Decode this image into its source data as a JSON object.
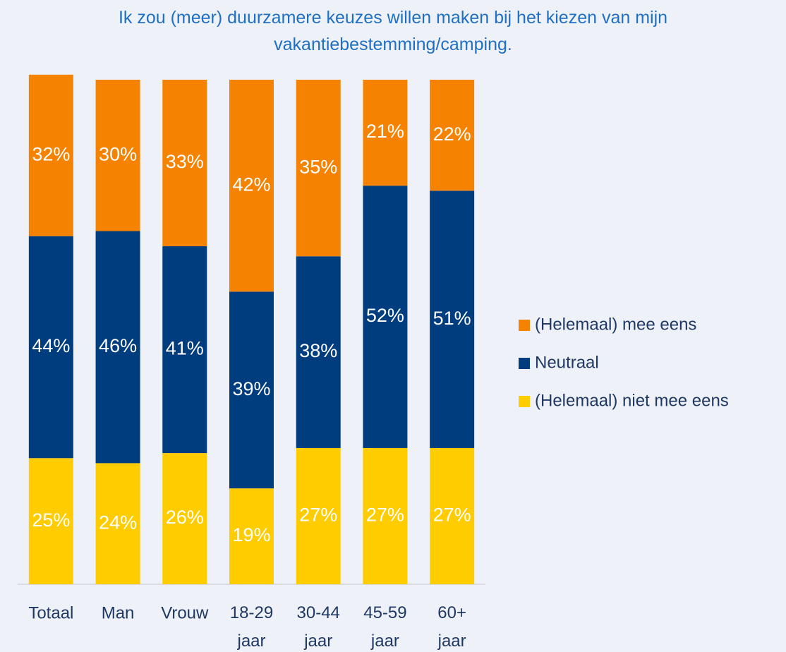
{
  "chart_data": {
    "type": "stacked_bar",
    "title": "Ik zou (meer) duurzamere keuzes willen maken bij het kiezen van mijn vakantiebestemming/camping.",
    "categories": [
      "Totaal",
      "Man",
      "Vrouw",
      "18-29 jaar",
      "30-44 jaar",
      "45-59 jaar",
      "60+ jaar"
    ],
    "series": [
      {
        "name": "(Helemaal) niet mee eens",
        "color": "#ffcc00",
        "values": [
          25,
          24,
          26,
          19,
          27,
          27,
          27
        ],
        "value_labels": [
          "25%",
          "24%",
          "26%",
          "19%",
          "27%",
          "27%",
          "27%"
        ]
      },
      {
        "name": "Neutraal",
        "color": "#003d7f",
        "values": [
          44,
          46,
          41,
          39,
          38,
          52,
          51
        ],
        "value_labels": [
          "44%",
          "46%",
          "41%",
          "39%",
          "38%",
          "52%",
          "51%"
        ]
      },
      {
        "name": "(Helemaal) mee eens",
        "color": "#f58200",
        "values": [
          32,
          30,
          33,
          42,
          35,
          21,
          22
        ],
        "value_labels": [
          "32%",
          "30%",
          "33%",
          "42%",
          "35%",
          "21%",
          "22%"
        ]
      }
    ],
    "ylim": [
      0,
      100
    ],
    "legend": "right"
  }
}
